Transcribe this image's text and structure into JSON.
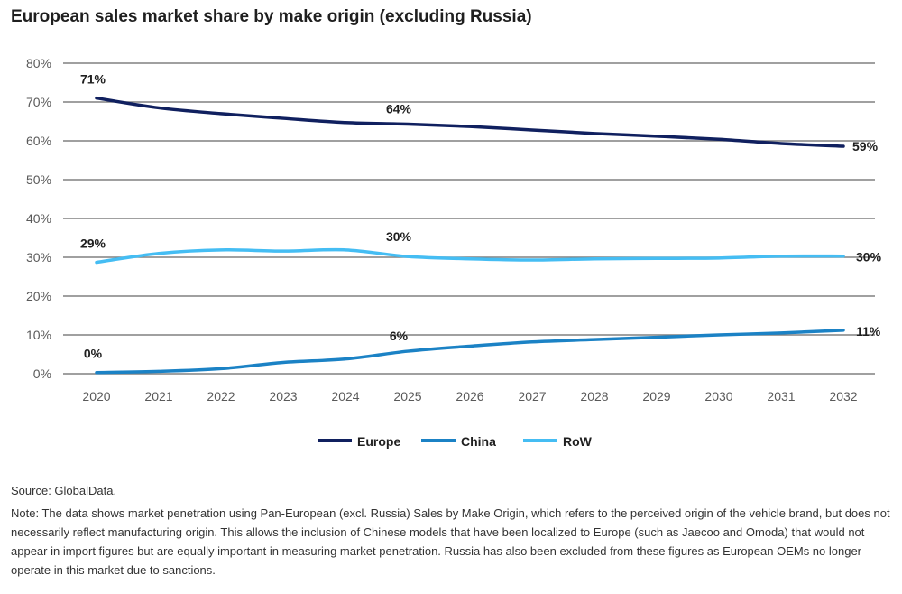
{
  "title": "European sales market share by make origin (excluding Russia)",
  "source": "Source: GlobalData.",
  "note": "Note: The data shows market penetration using Pan-European (excl. Russia) Sales by Make Origin, which refers to the perceived origin of the vehicle brand, but does not necessarily reflect manufacturing origin. This allows the inclusion of Chinese models that have been localized to Europe (such as Jaecoo and Omoda) that would not appear in import figures but are equally important in measuring market penetration. Russia has also been excluded from these figures as European OEMs no longer operate in this market due to sanctions.",
  "chart_data": {
    "type": "line",
    "title": "European sales market share by make origin (excluding Russia)",
    "xlabel": "",
    "ylabel": "",
    "x": [
      "2020",
      "2021",
      "2022",
      "2023",
      "2024",
      "2025",
      "2026",
      "2027",
      "2028",
      "2029",
      "2030",
      "2031",
      "2032"
    ],
    "ylim": [
      0,
      80
    ],
    "yticks": [
      0,
      10,
      20,
      30,
      40,
      50,
      60,
      70,
      80
    ],
    "ytick_labels": [
      "0%",
      "10%",
      "20%",
      "30%",
      "40%",
      "50%",
      "60%",
      "70%",
      "80%"
    ],
    "grid": true,
    "legend_position": "bottom",
    "series": [
      {
        "name": "Europe",
        "color": "#10205f",
        "values": [
          71,
          68.5,
          67,
          65.8,
          64.7,
          64.3,
          63.7,
          62.8,
          61.9,
          61.2,
          60.4,
          59.3,
          58.6
        ],
        "labels": [
          {
            "index": 0,
            "text": "71%"
          },
          {
            "index": 5,
            "text": "64%"
          },
          {
            "index": 12,
            "text": "59%"
          }
        ]
      },
      {
        "name": "China",
        "color": "#1b82c5",
        "values": [
          0.3,
          0.6,
          1.3,
          2.9,
          3.8,
          5.8,
          7.1,
          8.2,
          8.8,
          9.4,
          10,
          10.5,
          11.2
        ],
        "labels": [
          {
            "index": 0,
            "text": "0%"
          },
          {
            "index": 5,
            "text": "6%"
          },
          {
            "index": 12,
            "text": "11%"
          }
        ]
      },
      {
        "name": "RoW",
        "color": "#45bdf3",
        "values": [
          28.7,
          31,
          31.9,
          31.6,
          31.9,
          30.2,
          29.6,
          29.3,
          29.6,
          29.7,
          29.8,
          30.3,
          30.3
        ],
        "labels": [
          {
            "index": 0,
            "text": "29%"
          },
          {
            "index": 5,
            "text": "30%"
          },
          {
            "index": 12,
            "text": "30%"
          }
        ]
      }
    ]
  }
}
